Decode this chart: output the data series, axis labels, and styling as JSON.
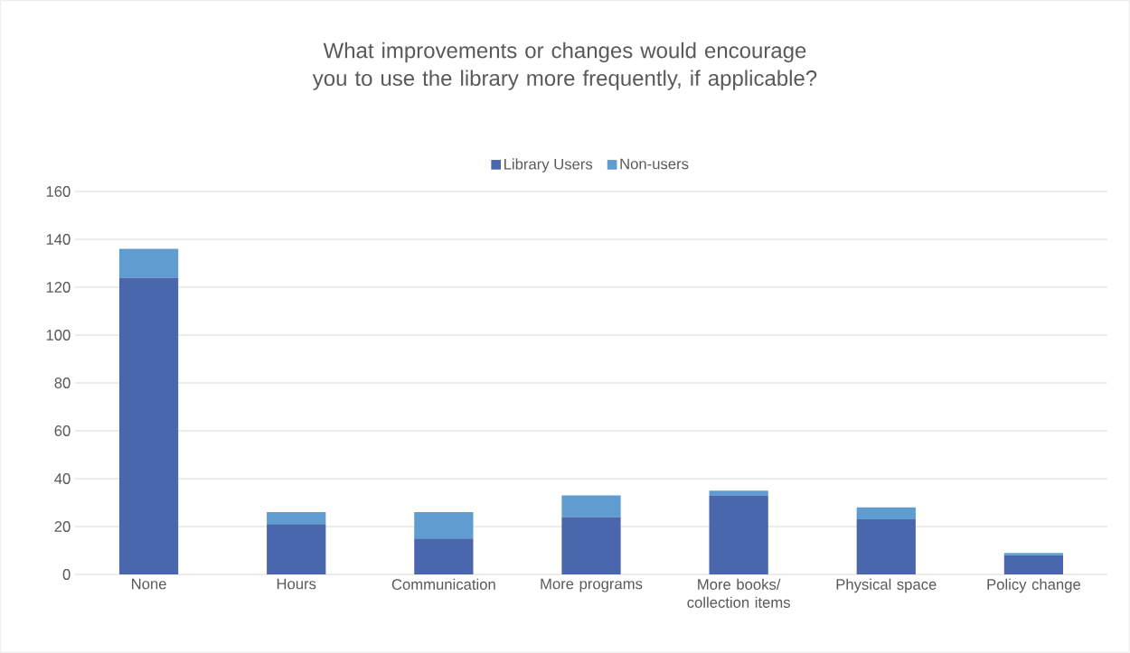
{
  "chart_data": {
    "type": "bar",
    "stacked": true,
    "title": "What improvements or changes would encourage you to use the library more frequently, if applicable?",
    "categories": [
      "None",
      "Hours",
      "Communication",
      "More programs",
      "More books/ collection items",
      "Physical space",
      "Policy change"
    ],
    "series": [
      {
        "name": "Library Users",
        "color": "#4a66ac",
        "values": [
          124,
          21,
          15,
          24,
          33,
          23,
          8
        ]
      },
      {
        "name": "Non-users",
        "color": "#5f9cd0",
        "values": [
          12,
          5,
          11,
          9,
          2,
          5,
          1
        ]
      }
    ],
    "ylim": [
      0,
      160
    ],
    "yticks": [
      0,
      20,
      40,
      60,
      80,
      100,
      120,
      140,
      160
    ],
    "grid": "y",
    "legend": "top"
  }
}
